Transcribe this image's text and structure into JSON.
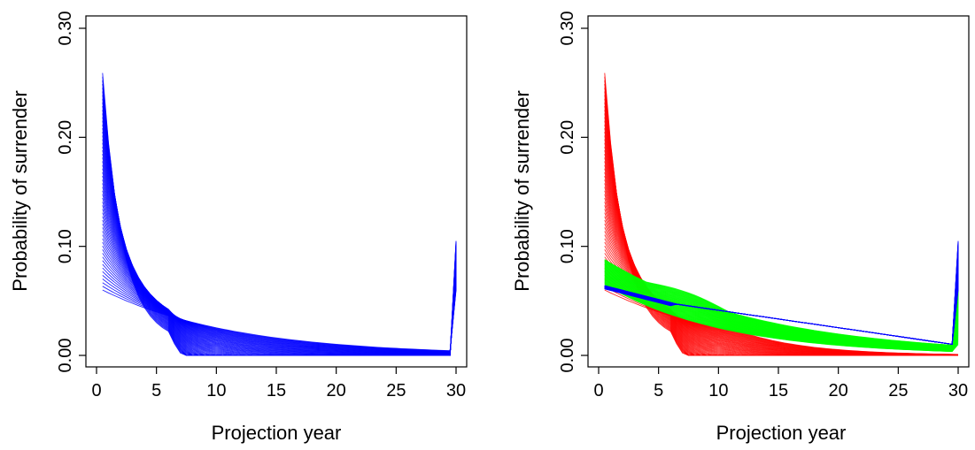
{
  "chart_data": [
    {
      "type": "line",
      "xlabel": "Projection year",
      "ylabel": "Probability of surrender",
      "xlim": [
        0,
        30
      ],
      "ylim": [
        0,
        0.3
      ],
      "xticks": [
        "0",
        "5",
        "10",
        "15",
        "20",
        "25",
        "30"
      ],
      "yticks": [
        "0.00",
        "0.10",
        "0.20",
        "0.30"
      ],
      "grid": false,
      "curve_family": {
        "count": 60,
        "x_start": 0.5,
        "x_end": 30,
        "start_value_range": [
          0.06,
          0.295
        ],
        "end_spike_value_range": [
          0.06,
          0.105
        ]
      },
      "series": [
        {
          "color": "#0000ff",
          "values_at_x": {
            "0.5": [
              0.06,
              0.295
            ],
            "5": [
              0.052,
              0.07
            ],
            "10": [
              0.003,
              0.044
            ],
            "20": [
              0.0,
              0.018
            ],
            "29.5": [
              0.0,
              0.008
            ],
            "30": [
              0.06,
              0.105
            ]
          }
        }
      ]
    },
    {
      "type": "line",
      "xlabel": "Projection year",
      "ylabel": "Probability of surrender",
      "xlim": [
        0,
        30
      ],
      "ylim": [
        0,
        0.3
      ],
      "xticks": [
        "0",
        "5",
        "10",
        "15",
        "20",
        "25",
        "30"
      ],
      "yticks": [
        "0.00",
        "0.10",
        "0.20",
        "0.30"
      ],
      "grid": false,
      "series": [
        {
          "color": "#ff0000",
          "values_at_x": {
            "0.5": [
              0.06,
              0.295
            ],
            "5": [
              0.05,
              0.07
            ],
            "10": [
              0.002,
              0.04
            ],
            "20": [
              0.0,
              0.012
            ],
            "29.5": [
              0.0,
              0.003
            ]
          }
        },
        {
          "color": "#00ff00",
          "values_at_x": {
            "0.5": [
              0.065,
              0.088
            ],
            "5": [
              0.06,
              0.075
            ],
            "10": [
              0.04,
              0.046
            ],
            "20": [
              0.008,
              0.018
            ],
            "29.5": [
              0.001,
              0.008
            ],
            "30": [
              0.01,
              0.06
            ]
          }
        },
        {
          "color": "#0000ff",
          "values_at_x": {
            "0.5": [
              0.061,
              0.064
            ],
            "6.5": [
              0.043,
              0.045
            ],
            "7": [
              0.046,
              0.048
            ],
            "29.5": [
              0.009,
              0.01
            ],
            "30": [
              0.06,
              0.105
            ]
          }
        }
      ]
    }
  ]
}
